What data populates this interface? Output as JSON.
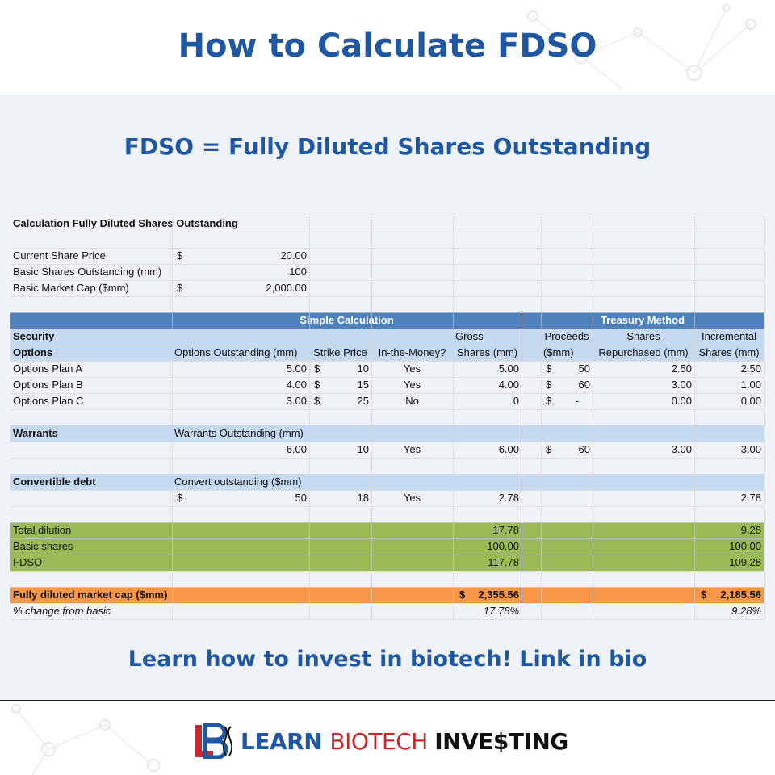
{
  "header": {
    "title": "How to Calculate FDSO"
  },
  "subtitle": "FDSO = Fully Diluted Shares Outstanding",
  "table": {
    "title": "Calculation Fully Diluted Shares Outstanding",
    "inputs": [
      {
        "label": "Current Share Price",
        "cur": "$",
        "value": "20.00"
      },
      {
        "label": "Basic Shares Outstanding (mm)",
        "cur": "",
        "value": "100"
      },
      {
        "label": "Basic Market Cap ($mm)",
        "cur": "$",
        "value": "2,000.00"
      }
    ],
    "section_simple": "Simple Calculation",
    "section_treasury": "Treasury Method",
    "headers": {
      "security": "Security",
      "options": "Options",
      "options_outstanding": "Options Outstanding (mm)",
      "strike_price": "Strike Price",
      "in_the_money": "In-the-Money?",
      "gross_1": "Gross",
      "gross_2": "Shares (mm)",
      "proceeds_1": "Proceeds",
      "proceeds_2": "($mm)",
      "shares_1": "Shares",
      "shares_2": "Repurchased (mm)",
      "incremental_1": "Incremental",
      "incremental_2": "Shares (mm)"
    },
    "options_rows": [
      {
        "label": "Options Plan A",
        "outstanding": "5.00",
        "strike_cur": "$",
        "strike": "10",
        "itm": "Yes",
        "gross": "5.00",
        "proc_cur": "$",
        "proceeds": "50",
        "repurchased": "2.50",
        "incremental": "2.50"
      },
      {
        "label": "Options Plan B",
        "outstanding": "4.00",
        "strike_cur": "$",
        "strike": "15",
        "itm": "Yes",
        "gross": "4.00",
        "proc_cur": "$",
        "proceeds": "60",
        "repurchased": "3.00",
        "incremental": "1.00"
      },
      {
        "label": "Options Plan C",
        "outstanding": "3.00",
        "strike_cur": "$",
        "strike": "25",
        "itm": "No",
        "gross": "0",
        "proc_cur": "$",
        "proceeds": "-",
        "repurchased": "0.00",
        "incremental": "0.00"
      }
    ],
    "warrants": {
      "label": "Warrants",
      "header": "Warrants Outstanding (mm)",
      "outstanding": "6.00",
      "strike": "10",
      "itm": "Yes",
      "gross": "6.00",
      "proc_cur": "$",
      "proceeds": "60",
      "repurchased": "3.00",
      "incremental": "3.00"
    },
    "convertible": {
      "label": "Convertible debt",
      "header": "Convert outstanding ($mm)",
      "cur": "$",
      "outstanding": "50",
      "strike": "18",
      "itm": "Yes",
      "gross": "2.78",
      "incremental": "2.78"
    },
    "totals": [
      {
        "label": "Total dilution",
        "simple": "17.78",
        "treasury": "9.28"
      },
      {
        "label": "Basic shares",
        "simple": "100.00",
        "treasury": "100.00"
      },
      {
        "label": "FDSO",
        "simple": "117.78",
        "treasury": "109.28"
      }
    ],
    "market_cap": {
      "label": "Fully diluted market cap ($mm)",
      "simple_cur": "$",
      "simple": "2,355.56",
      "treasury_cur": "$",
      "treasury": "2,185.56"
    },
    "pct_change": {
      "label": "% change from basic",
      "simple": "17.78%",
      "treasury": "9.28%"
    }
  },
  "cta": "Learn how to invest in biotech! Link in bio",
  "logo": {
    "mark": "LB",
    "text_learn": "LEARN ",
    "text_bio": "BIO",
    "text_tech": "TECH ",
    "text_investing": "INVE$TING"
  },
  "colors": {
    "title_blue": "#1f57a3",
    "header_blue": "#4f81bd",
    "light_blue": "#c5d9f1",
    "green": "#9bbb59",
    "orange": "#f79646"
  }
}
